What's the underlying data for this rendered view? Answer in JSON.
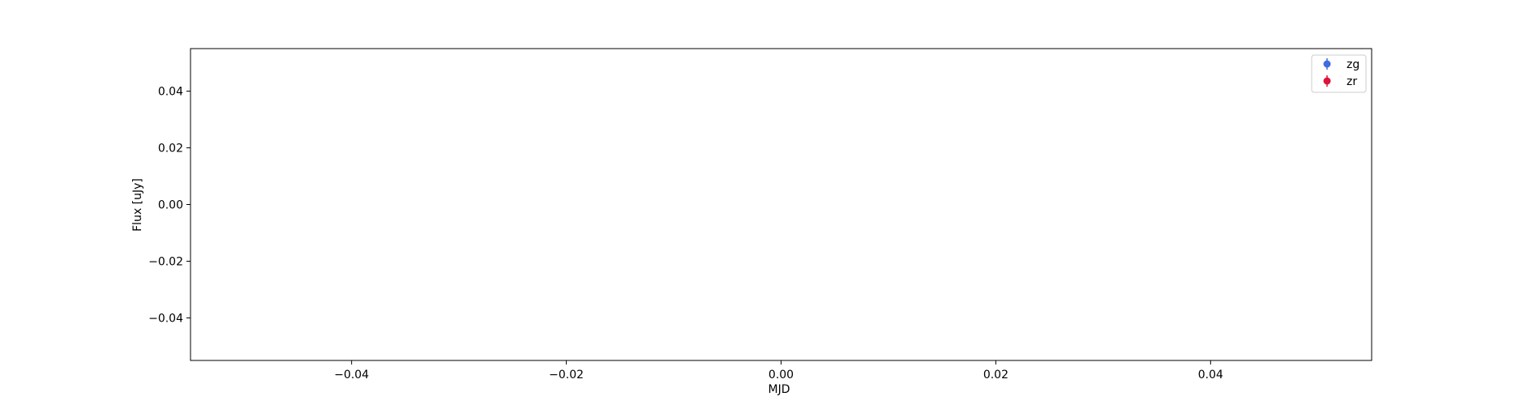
{
  "chart_data": {
    "type": "scatter",
    "title": "",
    "xlabel": "MJD",
    "ylabel": "Flux [uJy]",
    "xlim": [
      -0.055,
      0.055
    ],
    "ylim": [
      -0.055,
      0.055
    ],
    "x_ticks": [
      -0.04,
      -0.02,
      0.0,
      0.02,
      0.04
    ],
    "x_tick_labels": [
      "−0.04",
      "−0.02",
      "0.00",
      "0.02",
      "0.04"
    ],
    "y_ticks": [
      -0.04,
      -0.02,
      0.0,
      0.02,
      0.04
    ],
    "y_tick_labels": [
      "−0.04",
      "−0.02",
      "0.00",
      "0.02",
      "0.04"
    ],
    "grid": false,
    "legend_position": "top-right",
    "series": [
      {
        "name": "zg",
        "color": "#4169e1",
        "marker": "errorbar-circle",
        "points": []
      },
      {
        "name": "zr",
        "color": "#dc143c",
        "marker": "errorbar-circle",
        "points": []
      }
    ]
  }
}
